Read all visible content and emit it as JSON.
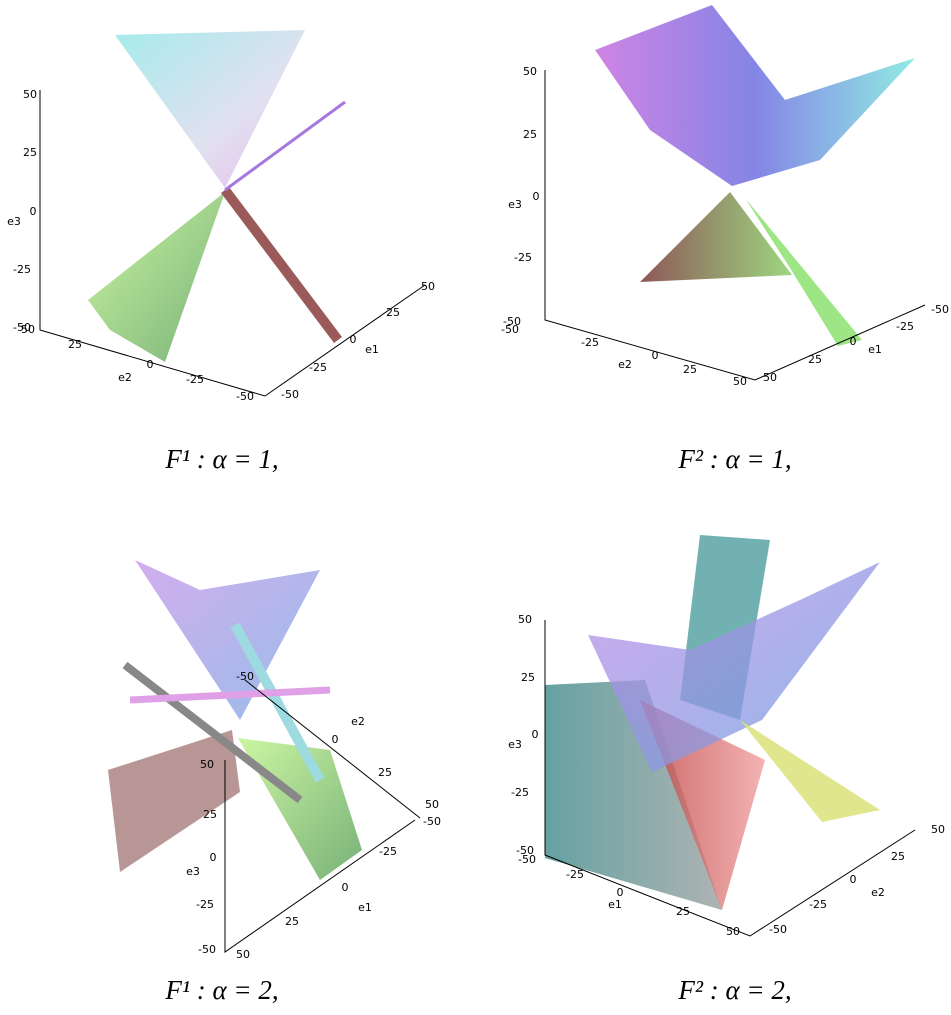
{
  "panels": [
    {
      "caption": "F¹ : α = 1,",
      "axes": [
        {
          "name": "e3",
          "ticks": [
            50,
            25,
            0,
            -25,
            -50
          ]
        },
        {
          "name": "e2",
          "ticks": [
            50,
            25,
            0,
            -25,
            -50
          ]
        },
        {
          "name": "e1",
          "ticks": [
            50,
            25,
            0,
            -25,
            -50
          ]
        }
      ]
    },
    {
      "caption": "F² : α = 1,",
      "axes": [
        {
          "name": "e3",
          "ticks": [
            50,
            25,
            0,
            -25,
            -50
          ]
        },
        {
          "name": "e2",
          "ticks": [
            -50,
            -25,
            0,
            25,
            50
          ]
        },
        {
          "name": "e1",
          "ticks": [
            -50,
            -25,
            0,
            25,
            50
          ]
        }
      ]
    },
    {
      "caption": "F¹ : α = 2,",
      "axes": [
        {
          "name": "e2",
          "ticks": [
            -50,
            0,
            25,
            50
          ]
        },
        {
          "name": "e3",
          "ticks": [
            50,
            25,
            0,
            -25,
            -50
          ]
        },
        {
          "name": "e1",
          "ticks": [
            -50,
            -25,
            0,
            25,
            50
          ]
        }
      ]
    },
    {
      "caption": "F² : α = 2,",
      "axes": [
        {
          "name": "e3",
          "ticks": [
            50,
            25,
            0,
            -25,
            -50
          ]
        },
        {
          "name": "e1",
          "ticks": [
            -50,
            -25,
            0,
            25,
            50
          ]
        },
        {
          "name": "e2",
          "ticks": [
            50,
            25,
            0,
            -25,
            -50
          ]
        }
      ]
    }
  ]
}
